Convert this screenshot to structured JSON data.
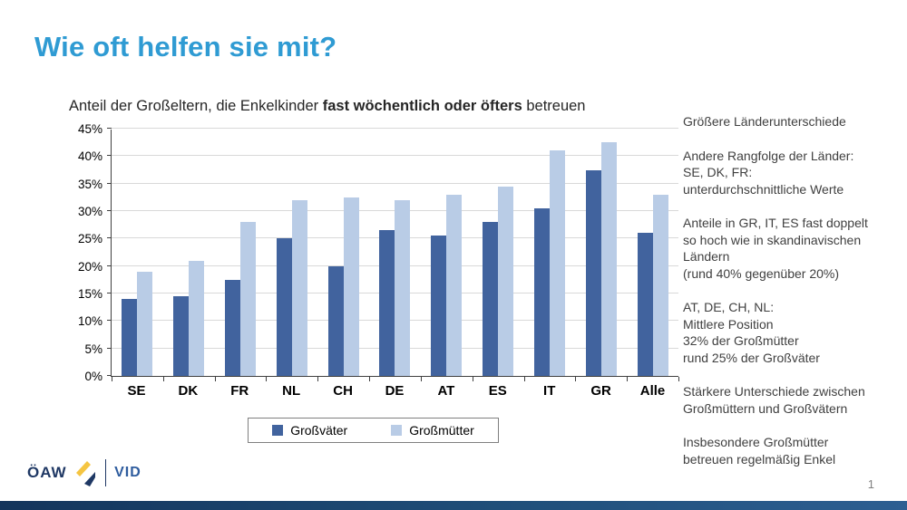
{
  "slide": {
    "title": "Wie oft helfen sie mit?",
    "page_number": "1",
    "accent_color": "#2F9BD3"
  },
  "subtitle": {
    "part1": "Anteil der Großeltern, die Enkelkinder ",
    "bold": "fast wöchentlich oder öfters",
    "part2": " betreuen"
  },
  "chart_data": {
    "type": "bar",
    "title": "Anteil der Großeltern, die Enkelkinder fast wöchentlich oder öfters betreuen",
    "categories": [
      "SE",
      "DK",
      "FR",
      "NL",
      "CH",
      "DE",
      "AT",
      "ES",
      "IT",
      "GR",
      "Alle"
    ],
    "series": [
      {
        "name": "Großväter",
        "color": "#41639E",
        "values": [
          14,
          14.5,
          17.5,
          25,
          20,
          26.5,
          25.5,
          28,
          30.5,
          37.5,
          26
        ]
      },
      {
        "name": "Großmütter",
        "color": "#B9CCE6",
        "values": [
          19,
          21,
          28,
          32,
          32.5,
          32,
          33,
          34.5,
          41,
          42.5,
          33
        ]
      }
    ],
    "xlabel": "",
    "ylabel": "",
    "ylim": [
      0,
      45
    ],
    "ytick_step": 5,
    "ytick_suffix": "%",
    "grid": true,
    "legend_position": "bottom"
  },
  "notes": [
    "Größere Länderunterschiede",
    "Andere Rangfolge der Länder:\nSE, DK, FR:\nunterdurchschnittliche Werte",
    "Anteile in GR, IT, ES fast doppelt\nso hoch wie in skandinavischen\nLändern\n(rund 40% gegenüber 20%)",
    "AT, DE, CH, NL:\nMittlere Position\n32% der Großmütter\nrund 25% der Großväter",
    "Stärkere Unterschiede zwischen\nGroßmüttern und Großvätern",
    "Insbesondere Großmütter\nbetreuen regelmäßig Enkel"
  ],
  "footer": {
    "oeaw_label": "ÖAW",
    "vid_label": "VID"
  }
}
